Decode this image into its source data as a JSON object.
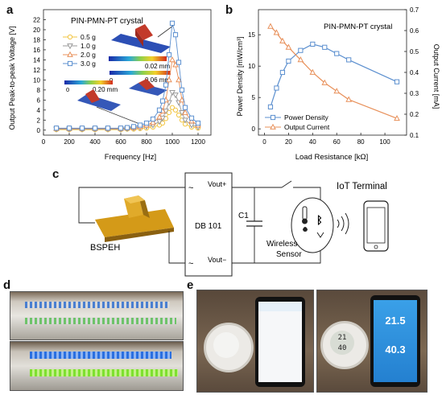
{
  "panels": {
    "a": "a",
    "b": "b",
    "c": "c",
    "d": "d",
    "e": "e"
  },
  "colors": {
    "blue": "#5b8fcf",
    "orange": "#e8905a",
    "gray": "#9a9a9a",
    "yellow": "#f2c542"
  },
  "chart_data": [
    {
      "type": "line",
      "title": "PIN-PMN-PT crystal",
      "xlabel": "Frequency [Hz]",
      "ylabel": "Output Peak-to-peak Voltage [V]",
      "xlim": [
        0,
        1300
      ],
      "ylim": [
        -1,
        24
      ],
      "xticks": [
        0,
        200,
        400,
        600,
        800,
        1000,
        1200
      ],
      "yticks": [
        0,
        2,
        4,
        6,
        8,
        10,
        12,
        14,
        16,
        18,
        20,
        22
      ],
      "x": [
        100,
        200,
        300,
        400,
        500,
        600,
        650,
        700,
        750,
        800,
        850,
        900,
        925,
        950,
        975,
        1000,
        1025,
        1050,
        1075,
        1100,
        1150,
        1200
      ],
      "series": [
        {
          "name": "0.5 g",
          "color": "#f2c542",
          "marker": "o",
          "values": [
            0.1,
            0.1,
            0.1,
            0.1,
            0.1,
            0.1,
            0.2,
            0.2,
            0.3,
            0.4,
            0.6,
            1.0,
            1.4,
            2.3,
            3.5,
            4.5,
            4.0,
            3.0,
            2.0,
            1.2,
            0.6,
            0.4
          ]
        },
        {
          "name": "1.0 g",
          "color": "#9a9a9a",
          "marker": "v",
          "values": [
            0.2,
            0.2,
            0.2,
            0.2,
            0.2,
            0.2,
            0.3,
            0.4,
            0.5,
            0.7,
            1.0,
            1.7,
            2.4,
            3.8,
            5.5,
            7.5,
            7.0,
            5.5,
            3.5,
            2.0,
            1.0,
            0.6
          ]
        },
        {
          "name": "2.0 g",
          "color": "#e8905a",
          "marker": "^",
          "values": [
            0.3,
            0.3,
            0.3,
            0.3,
            0.3,
            0.3,
            0.4,
            0.5,
            0.7,
            1.0,
            1.5,
            2.6,
            3.8,
            6.0,
            10.0,
            14.0,
            13.0,
            10.0,
            6.0,
            3.5,
            1.8,
            1.0
          ]
        },
        {
          "name": "3.0 g",
          "color": "#5b8fcf",
          "marker": "s",
          "values": [
            0.4,
            0.4,
            0.4,
            0.4,
            0.4,
            0.4,
            0.5,
            0.7,
            1.0,
            1.4,
            2.2,
            4.0,
            5.8,
            9.0,
            15.0,
            21.3,
            19.0,
            13.5,
            8.0,
            4.5,
            2.4,
            1.4
          ]
        }
      ],
      "insets": {
        "label_top": "0.02 mm",
        "label_mid": "0.06 mm",
        "label_left": "0.20 mm",
        "zero": "0"
      }
    },
    {
      "type": "line",
      "title": "PIN-PMN-PT crystal",
      "xlabel": "Load Resistance [kΩ]",
      "ylabel_left": "Power Density [mW/cm³]",
      "ylabel_right": "Output Current [mA]",
      "xlim": [
        -5,
        118
      ],
      "ylim_left": [
        -1,
        19
      ],
      "ylim_right": [
        0.1,
        0.7
      ],
      "xticks": [
        0,
        20,
        40,
        60,
        80,
        100
      ],
      "yticks_left": [
        0,
        5,
        10,
        15
      ],
      "yticks_right": [
        0.1,
        0.2,
        0.3,
        0.4,
        0.5,
        0.6,
        0.7
      ],
      "x": [
        5,
        10,
        15,
        20,
        30,
        40,
        50,
        60,
        70,
        110
      ],
      "series": [
        {
          "name": "Power Density",
          "axis": "left",
          "color": "#5b8fcf",
          "marker": "s",
          "values": [
            3.5,
            6.5,
            9.0,
            10.8,
            12.5,
            13.5,
            13.0,
            12.0,
            11.0,
            7.5
          ]
        },
        {
          "name": "Output Current",
          "axis": "right",
          "color": "#e8905a",
          "marker": "^",
          "values": [
            0.62,
            0.59,
            0.55,
            0.52,
            0.46,
            0.4,
            0.35,
            0.31,
            0.27,
            0.18
          ]
        }
      ]
    }
  ],
  "circuit": {
    "bspeh": "BSPEH",
    "db": "DB 101",
    "vout_plus": "Vout+",
    "vout_minus": "Vout−",
    "c1": "C1",
    "wireless": "Wireless",
    "sensor": "Sensor",
    "iot": "IoT Terminal",
    "tilde": "~"
  },
  "phone": {
    "reading1": "21.5",
    "reading2": "40.3"
  }
}
